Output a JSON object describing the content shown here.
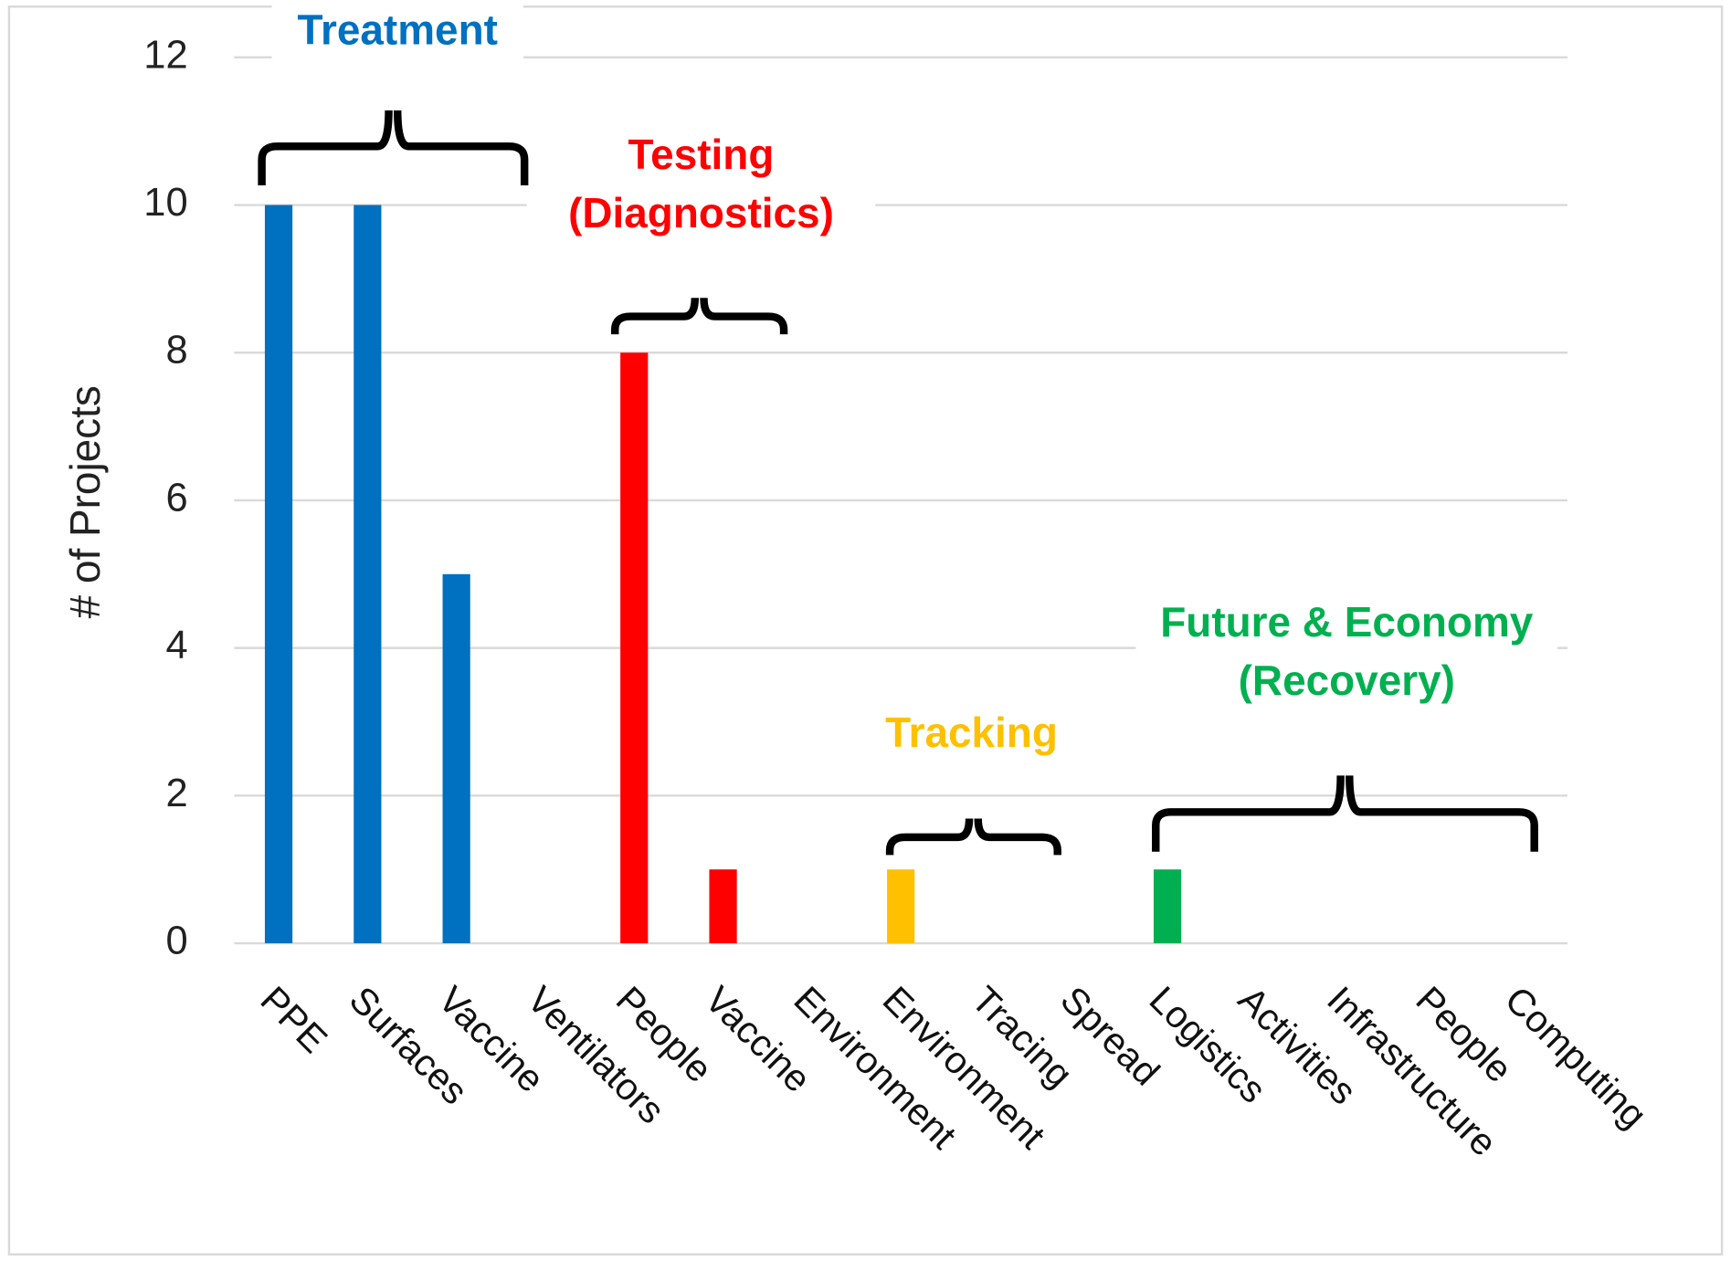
{
  "chart_data": {
    "type": "bar",
    "y_label": "# of Projects",
    "categories": [
      "PPE",
      "Surfaces",
      "Vaccine",
      "Ventilators",
      "People",
      "Vaccine",
      "Environment",
      "Environment",
      "Tracing",
      "Spread",
      "Logistics",
      "Activities",
      "Infrastructure",
      "People",
      "Computing"
    ],
    "values": [
      10,
      10,
      5,
      0,
      8,
      1,
      0,
      1,
      0,
      0,
      1,
      0,
      0,
      0,
      0
    ],
    "colors": [
      "#0070c0",
      "#0070c0",
      "#0070c0",
      "#0070c0",
      "#ff0000",
      "#ff0000",
      "#ff0000",
      "#ffc000",
      "#ffc000",
      "#ffc000",
      "#00b050",
      "#00b050",
      "#00b050",
      "#00b050",
      "#00b050"
    ],
    "ylim": [
      0,
      12
    ],
    "yticks": [
      0,
      2,
      4,
      6,
      8,
      10,
      12
    ],
    "grid": true,
    "annotations": [
      {
        "lines": [
          "Treatment"
        ],
        "color": "#0070c0"
      },
      {
        "lines": [
          "Testing",
          "(Diagnostics)"
        ],
        "color": "#ff0000"
      },
      {
        "lines": [
          "Tracking"
        ],
        "color": "#ffc000"
      },
      {
        "lines": [
          "Future & Economy",
          "(Recovery)"
        ],
        "color": "#00b050"
      }
    ]
  }
}
